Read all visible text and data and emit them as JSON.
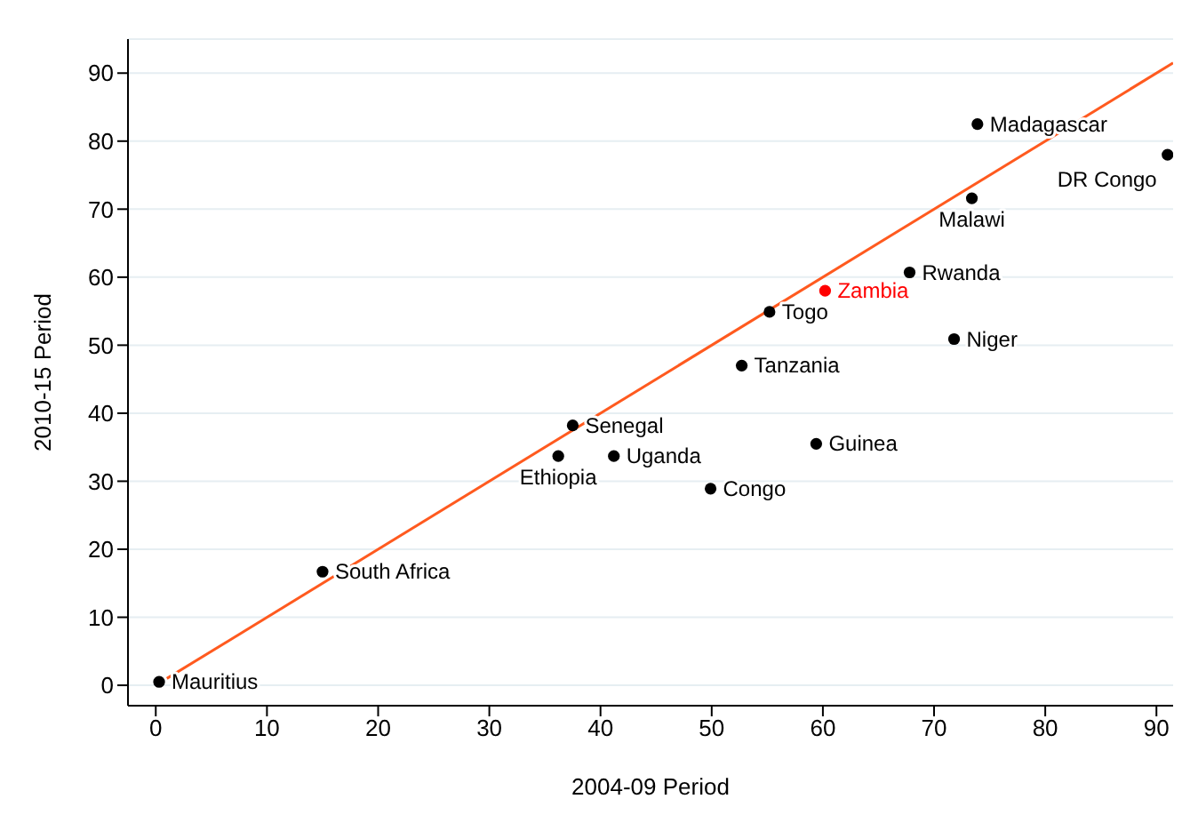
{
  "chart_data": {
    "type": "scatter",
    "xlabel": "2004-09 Period",
    "ylabel": "2010-15 Period",
    "xlim": [
      -2.5,
      91.5
    ],
    "ylim": [
      -3,
      95
    ],
    "xticks": [
      0,
      10,
      20,
      30,
      40,
      50,
      60,
      70,
      80,
      90
    ],
    "yticks": [
      0,
      10,
      20,
      30,
      40,
      50,
      60,
      70,
      80,
      90
    ],
    "grid": "y",
    "legend": false,
    "marker": "circle",
    "series": [
      {
        "name": "Mauritius",
        "color": "#000000",
        "x": [
          0.3
        ],
        "values": [
          0.5
        ]
      },
      {
        "name": "South Africa",
        "color": "#000000",
        "x": [
          15
        ],
        "values": [
          16.7
        ]
      },
      {
        "name": "Ethiopia",
        "color": "#000000",
        "x": [
          36.2
        ],
        "values": [
          33.7
        ]
      },
      {
        "name": "Senegal",
        "color": "#000000",
        "x": [
          37.5
        ],
        "values": [
          38.2
        ]
      },
      {
        "name": "Uganda",
        "color": "#000000",
        "x": [
          41.2
        ],
        "values": [
          33.7
        ]
      },
      {
        "name": "Congo",
        "color": "#000000",
        "x": [
          49.9
        ],
        "values": [
          28.9
        ]
      },
      {
        "name": "Tanzania",
        "color": "#000000",
        "x": [
          52.7
        ],
        "values": [
          47
        ]
      },
      {
        "name": "Togo",
        "color": "#000000",
        "x": [
          55.2
        ],
        "values": [
          54.9
        ]
      },
      {
        "name": "Zambia",
        "color": "#ff0000",
        "x": [
          60.2
        ],
        "values": [
          58
        ]
      },
      {
        "name": "Guinea",
        "color": "#000000",
        "x": [
          59.4
        ],
        "values": [
          35.5
        ]
      },
      {
        "name": "Rwanda",
        "color": "#000000",
        "x": [
          67.8
        ],
        "values": [
          60.7
        ]
      },
      {
        "name": "Niger",
        "color": "#000000",
        "x": [
          71.8
        ],
        "values": [
          50.9
        ]
      },
      {
        "name": "Malawi",
        "color": "#000000",
        "x": [
          73.4
        ],
        "values": [
          71.6
        ]
      },
      {
        "name": "Madagascar",
        "color": "#000000",
        "x": [
          73.9
        ],
        "values": [
          82.5
        ]
      },
      {
        "name": "DR Congo",
        "color": "#000000",
        "x": [
          91
        ],
        "values": [
          78
        ]
      },
      {
        "type": "line",
        "marker": "none",
        "color": "#ff5a1f",
        "x": [
          1,
          91.5
        ],
        "values": [
          1,
          91.5
        ]
      }
    ]
  }
}
